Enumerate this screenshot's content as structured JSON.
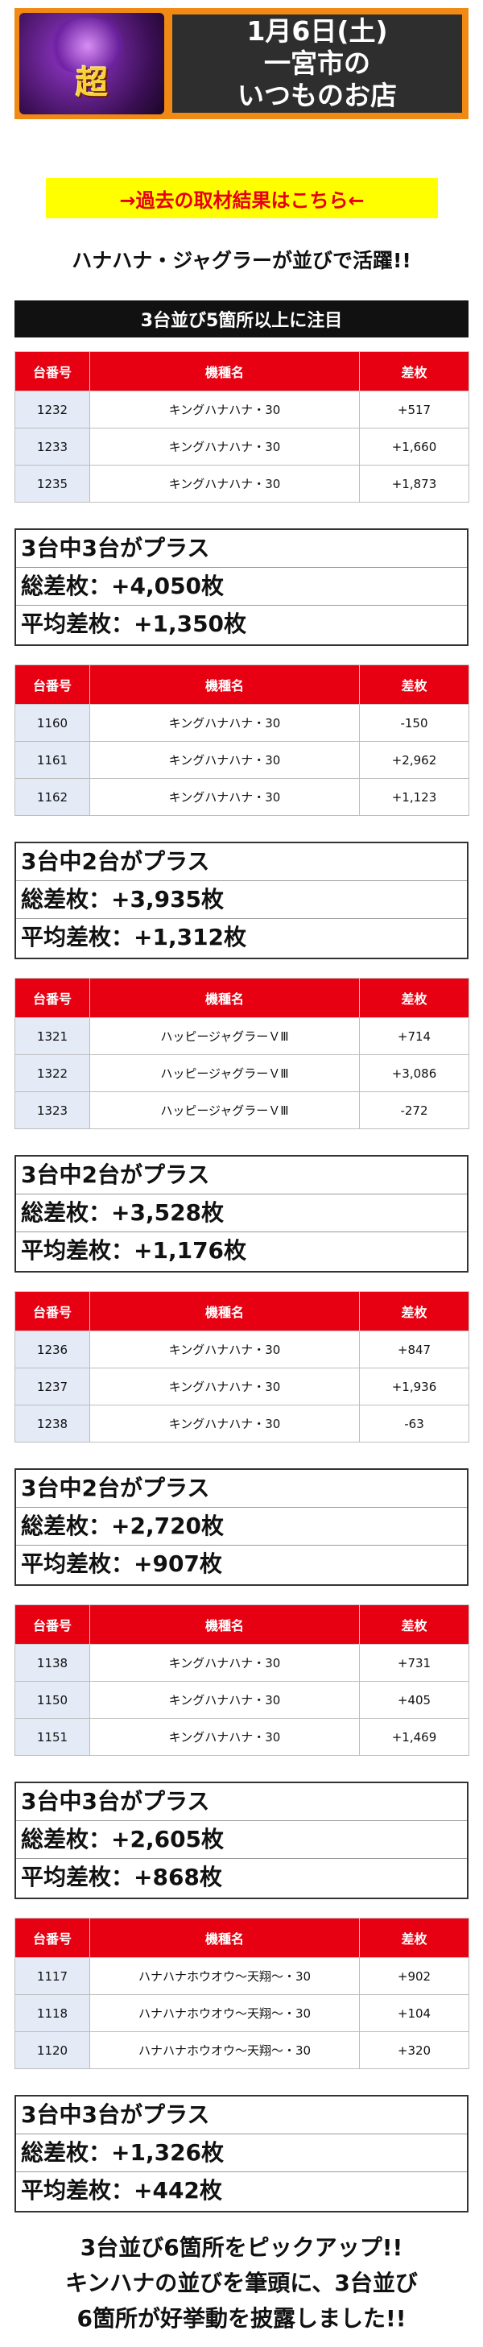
{
  "header": {
    "logo_text": "超",
    "date_line": "1月6日(土)",
    "store_line1": "一宮市の",
    "store_line2": "いつものお店"
  },
  "link_text": "→過去の取材結果はこちら←",
  "headline": "ハナハナ・ジャグラーが並びで活躍!!",
  "section_title": "3台並び5箇所以上に注目",
  "table_headers": {
    "col1": "台番号",
    "col2": "機種名",
    "col3": "差枚"
  },
  "blocks": [
    {
      "rows": [
        {
          "no": "1232",
          "machine": "キングハナハナ・30",
          "diff": "+517"
        },
        {
          "no": "1233",
          "machine": "キングハナハナ・30",
          "diff": "+1,660"
        },
        {
          "no": "1235",
          "machine": "キングハナハナ・30",
          "diff": "+1,873"
        }
      ],
      "summary": {
        "count": "3台中3台がプラス",
        "total": "総差枚：+4,050枚",
        "avg": "平均差枚：+1,350枚"
      }
    },
    {
      "rows": [
        {
          "no": "1160",
          "machine": "キングハナハナ・30",
          "diff": "-150"
        },
        {
          "no": "1161",
          "machine": "キングハナハナ・30",
          "diff": "+2,962"
        },
        {
          "no": "1162",
          "machine": "キングハナハナ・30",
          "diff": "+1,123"
        }
      ],
      "summary": {
        "count": "3台中2台がプラス",
        "total": "総差枚：+3,935枚",
        "avg": "平均差枚：+1,312枚"
      }
    },
    {
      "rows": [
        {
          "no": "1321",
          "machine": "ハッピージャグラーＶⅢ",
          "diff": "+714"
        },
        {
          "no": "1322",
          "machine": "ハッピージャグラーＶⅢ",
          "diff": "+3,086"
        },
        {
          "no": "1323",
          "machine": "ハッピージャグラーＶⅢ",
          "diff": "-272"
        }
      ],
      "summary": {
        "count": "3台中2台がプラス",
        "total": "総差枚：+3,528枚",
        "avg": "平均差枚：+1,176枚"
      }
    },
    {
      "rows": [
        {
          "no": "1236",
          "machine": "キングハナハナ・30",
          "diff": "+847"
        },
        {
          "no": "1237",
          "machine": "キングハナハナ・30",
          "diff": "+1,936"
        },
        {
          "no": "1238",
          "machine": "キングハナハナ・30",
          "diff": "-63"
        }
      ],
      "summary": {
        "count": "3台中2台がプラス",
        "total": "総差枚：+2,720枚",
        "avg": "平均差枚：+907枚"
      }
    },
    {
      "rows": [
        {
          "no": "1138",
          "machine": "キングハナハナ・30",
          "diff": "+731"
        },
        {
          "no": "1150",
          "machine": "キングハナハナ・30",
          "diff": "+405"
        },
        {
          "no": "1151",
          "machine": "キングハナハナ・30",
          "diff": "+1,469"
        }
      ],
      "summary": {
        "count": "3台中3台がプラス",
        "total": "総差枚：+2,605枚",
        "avg": "平均差枚：+868枚"
      }
    },
    {
      "rows": [
        {
          "no": "1117",
          "machine": "ハナハナホウオウ～天翔～・30",
          "diff": "+902"
        },
        {
          "no": "1118",
          "machine": "ハナハナホウオウ～天翔～・30",
          "diff": "+104"
        },
        {
          "no": "1120",
          "machine": "ハナハナホウオウ～天翔～・30",
          "diff": "+320"
        }
      ],
      "summary": {
        "count": "3台中3台がプラス",
        "total": "総差枚：+1,326枚",
        "avg": "平均差枚：+442枚"
      }
    }
  ],
  "footer_lines": [
    "3台並び6箇所をピックアップ!!",
    "キンハナの並びを筆頭に、3台並び",
    "6箇所が好挙動を披露しました!!"
  ]
}
